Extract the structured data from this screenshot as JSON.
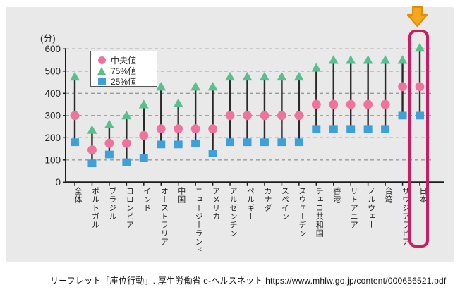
{
  "chart_data": {
    "type": "scatter",
    "subtype": "percentile-range-plot",
    "unit_label": "(分)",
    "ylim": [
      0,
      600
    ],
    "yticks": [
      0,
      100,
      200,
      300,
      400,
      500,
      600
    ],
    "grid": true,
    "legend_position": "inside-top-left",
    "categories": [
      "全体",
      "ポルトガル",
      "ブラジル",
      "コロンビア",
      "インド",
      "オーストラリア",
      "中国",
      "ニュージーランド",
      "アメリカ",
      "アルゼンチン",
      "ベルギー",
      "カナダ",
      "スペイン",
      "スウェーデン",
      "チェコ共和国",
      "香港",
      "リトアニア",
      "ノルウェー",
      "台湾",
      "サウジアラビア",
      "日本"
    ],
    "series": [
      {
        "name": "中央値",
        "marker": "circle",
        "color": "#f0739e",
        "values": [
          300,
          145,
          175,
          175,
          210,
          240,
          240,
          240,
          240,
          300,
          300,
          300,
          300,
          300,
          350,
          350,
          350,
          350,
          350,
          430,
          430
        ]
      },
      {
        "name": "75%値",
        "marker": "triangle",
        "color": "#57c08d",
        "values": [
          475,
          235,
          260,
          300,
          350,
          430,
          355,
          430,
          430,
          475,
          475,
          475,
          475,
          475,
          515,
          550,
          550,
          550,
          550,
          550,
          605
        ]
      },
      {
        "name": "25%値",
        "marker": "square",
        "color": "#3da0d8",
        "values": [
          180,
          85,
          125,
          90,
          110,
          170,
          170,
          175,
          130,
          180,
          180,
          180,
          180,
          180,
          240,
          240,
          240,
          240,
          240,
          300,
          300
        ]
      }
    ],
    "highlighted_category": "日本"
  },
  "colors": {
    "panel_bg": "#e9e9e9",
    "gridline": "#999999",
    "axis": "#1c1c1c",
    "whisker": "#2a2a2a",
    "highlight": "#c91c62",
    "arrow_fill": "#f5a71e",
    "arrow_border": "#dd8f08"
  },
  "caption": {
    "text": "リーフレット「座位行動」. 厚生労働省  e-ヘルスネット  https://www.mhlw.go.jp/content/000656521.pdf"
  }
}
